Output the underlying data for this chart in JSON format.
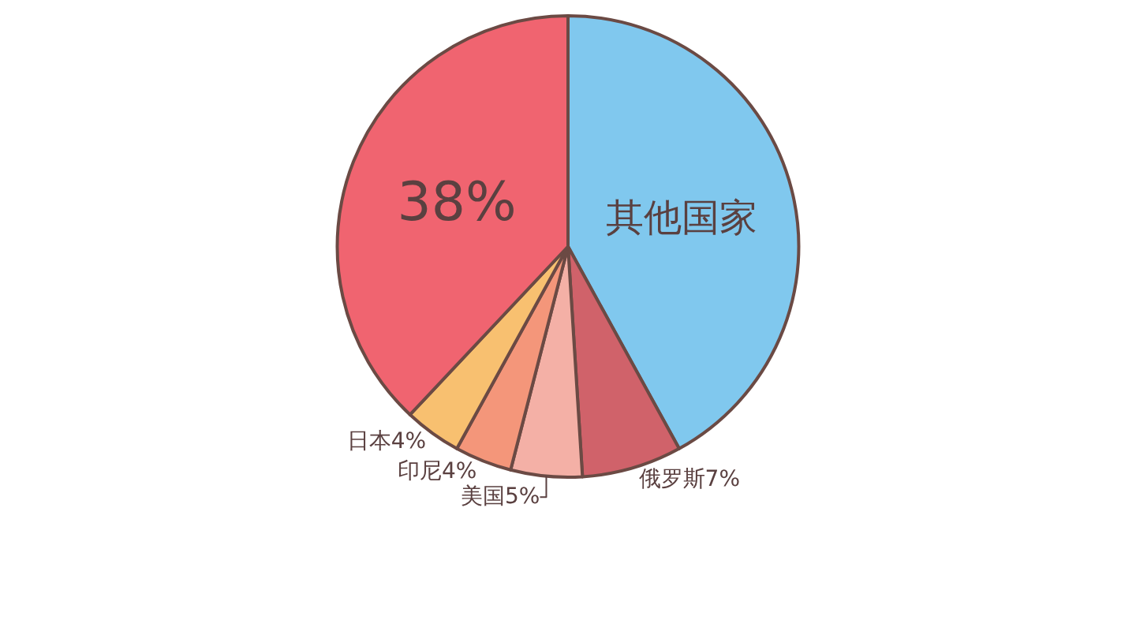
{
  "chart_data": {
    "type": "pie",
    "categories": [
      "其他国家",
      "俄罗斯",
      "美国",
      "印尼",
      "日本",
      null
    ],
    "values": [
      42,
      7,
      5,
      4,
      4,
      38
    ],
    "colors": [
      "#80c8ee",
      "#d0626a",
      "#f4b0a6",
      "#f4967a",
      "#f8c070",
      "#f06470"
    ],
    "value_labels": [
      null,
      "7%",
      "5%",
      "4%",
      "4%",
      "38%"
    ]
  }
}
